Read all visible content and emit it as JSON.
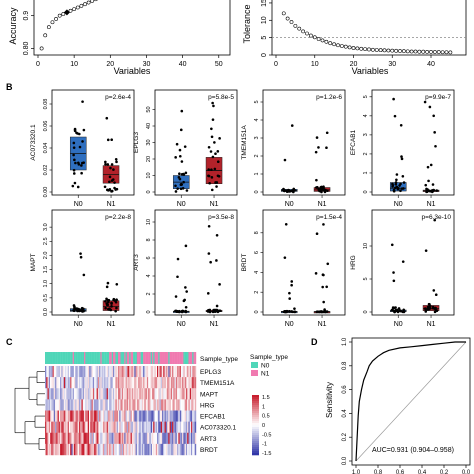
{
  "chart_data": [
    {
      "type": "scatter",
      "panel": "A-left",
      "ylabel": "Accuracy",
      "xlabel": "Variables",
      "x_ticks": [
        "0",
        "10",
        "20",
        "30",
        "40",
        "50"
      ],
      "y_ticks": [
        "0.80",
        "0.9"
      ],
      "xlim": [
        0,
        52
      ],
      "ylim": [
        0.78,
        0.96
      ],
      "points": [
        [
          1,
          0.8
        ],
        [
          2,
          0.84
        ],
        [
          3,
          0.865
        ],
        [
          4,
          0.88
        ],
        [
          5,
          0.89
        ],
        [
          6,
          0.9
        ],
        [
          7,
          0.905
        ],
        [
          8,
          0.91
        ],
        [
          9,
          0.915
        ],
        [
          10,
          0.92
        ],
        [
          11,
          0.925
        ],
        [
          12,
          0.93
        ],
        [
          13,
          0.935
        ],
        [
          14,
          0.94
        ],
        [
          15,
          0.945
        ],
        [
          16,
          0.95
        ]
      ],
      "highlight": [
        8,
        0.91
      ]
    },
    {
      "type": "scatter",
      "panel": "A-right",
      "ylabel": "Tolerance",
      "xlabel": "Variables",
      "x_ticks": [
        "0",
        "10",
        "20",
        "30",
        "40"
      ],
      "y_ticks": [
        "0",
        "5",
        "10",
        "15"
      ],
      "xlim": [
        0,
        48
      ],
      "ylim": [
        0,
        17
      ],
      "hline": 5,
      "points": [
        [
          2,
          12
        ],
        [
          3,
          10.5
        ],
        [
          4,
          9.5
        ],
        [
          5,
          8.4
        ],
        [
          6,
          7.6
        ],
        [
          7,
          6.8
        ],
        [
          8,
          6.2
        ],
        [
          9,
          5.6
        ],
        [
          10,
          5.1
        ],
        [
          11,
          4.6
        ],
        [
          12,
          4.2
        ],
        [
          13,
          3.8
        ],
        [
          14,
          3.4
        ],
        [
          15,
          3.1
        ],
        [
          16,
          2.8
        ],
        [
          17,
          2.6
        ],
        [
          18,
          2.4
        ],
        [
          19,
          2.2
        ],
        [
          20,
          2.0
        ],
        [
          21,
          1.9
        ],
        [
          22,
          1.8
        ],
        [
          23,
          1.7
        ],
        [
          24,
          1.6
        ],
        [
          25,
          1.5
        ],
        [
          26,
          1.45
        ],
        [
          27,
          1.4
        ],
        [
          28,
          1.35
        ],
        [
          29,
          1.3
        ],
        [
          30,
          1.25
        ],
        [
          31,
          1.2
        ],
        [
          32,
          1.15
        ],
        [
          33,
          1.1
        ],
        [
          34,
          1.05
        ],
        [
          35,
          1.0
        ],
        [
          36,
          1.0
        ],
        [
          37,
          0.95
        ],
        [
          38,
          0.95
        ],
        [
          39,
          0.9
        ],
        [
          40,
          0.9
        ],
        [
          41,
          0.85
        ],
        [
          42,
          0.85
        ],
        [
          43,
          0.8
        ],
        [
          44,
          0.8
        ],
        [
          45,
          0.75
        ]
      ]
    },
    {
      "type": "box",
      "panel": "B",
      "groups": [
        "N0",
        "N1"
      ],
      "colors": {
        "N0": "#2f6fbf",
        "N1": "#b2222a"
      },
      "subplots": [
        {
          "gene": "AC073320.1",
          "p": "p=2.6e-4",
          "ylim": [
            0,
            0.09
          ],
          "yticks": [
            "0.00",
            "0.02",
            "0.04",
            "0.06",
            "0.08"
          ],
          "tick_values": [
            0,
            0.02,
            0.04,
            0.06,
            0.08
          ],
          "box": {
            "N0": [
              0.02,
              0.035,
              0.05
            ],
            "N1": [
              0.008,
              0.016,
              0.024
            ]
          }
        },
        {
          "gene": "EPLG3",
          "p": "p=5.8e-5",
          "ylim": [
            0,
            60
          ],
          "yticks": [
            "0",
            "10",
            "20",
            "30",
            "40",
            "50"
          ],
          "tick_values": [
            0,
            10,
            20,
            30,
            40,
            50
          ],
          "box": {
            "N0": [
              2,
              6,
              10
            ],
            "N1": [
              5,
              13,
              21
            ]
          }
        },
        {
          "gene": "TMEM151A",
          "p": "p=1.2e-6",
          "ylim": [
            0,
            5.5
          ],
          "yticks": [
            "0",
            "1",
            "2",
            "3",
            "4",
            "5"
          ],
          "tick_values": [
            0,
            1,
            2,
            3,
            4,
            5
          ],
          "box": {
            "N0": [
              0.03,
              0.08,
              0.15
            ],
            "N1": [
              0.03,
              0.12,
              0.25
            ]
          }
        },
        {
          "gene": "EFCAB1",
          "p": "p=9.9e-7",
          "ylim": [
            0,
            5.2
          ],
          "yticks": [
            "0",
            "1",
            "2",
            "3",
            "4",
            "5"
          ],
          "tick_values": [
            0,
            1,
            2,
            3,
            4,
            5
          ],
          "box": {
            "N0": [
              0.05,
              0.2,
              0.5
            ],
            "N1": [
              0.02,
              0.06,
              0.1
            ]
          }
        },
        {
          "gene": "MAPT",
          "p": "p=2.2e-8",
          "ylim": [
            0,
            3.5
          ],
          "yticks": [
            "0.0",
            "0.5",
            "1.0",
            "1.5",
            "2.0",
            "2.5",
            "3.0"
          ],
          "tick_values": [
            0,
            0.5,
            1,
            1.5,
            2,
            2.5,
            3
          ],
          "box": {
            "N0": [
              0.02,
              0.06,
              0.12
            ],
            "N1": [
              0.05,
              0.2,
              0.4
            ]
          }
        },
        {
          "gene": "ART3",
          "p": "p=3.5e-8",
          "ylim": [
            0,
            11
          ],
          "yticks": [
            "0",
            "2",
            "4",
            "6",
            "8",
            "10"
          ],
          "tick_values": [
            0,
            2,
            4,
            6,
            8,
            10
          ],
          "box": {
            "N0": [
              0.02,
              0.05,
              0.1
            ],
            "N1": [
              0.03,
              0.1,
              0.2
            ]
          }
        },
        {
          "gene": "BRDT",
          "p": "p=1.5e-4",
          "ylim": [
            0,
            10
          ],
          "yticks": [
            "0",
            "2",
            "4",
            "6",
            "8"
          ],
          "tick_values": [
            0,
            2,
            4,
            6,
            8
          ],
          "box": {
            "N0": [
              0.02,
              0.04,
              0.07
            ],
            "N1": [
              0.01,
              0.03,
              0.05
            ]
          }
        },
        {
          "gene": "HRG",
          "p": "p=6.3e-10",
          "ylim": [
            0,
            15
          ],
          "yticks": [
            "0",
            "5",
            "10"
          ],
          "tick_values": [
            0,
            5,
            10
          ],
          "box": {
            "N0": [
              0.05,
              0.15,
              0.3
            ],
            "N1": [
              0.2,
              0.5,
              1.0
            ]
          }
        }
      ]
    },
    {
      "type": "heatmap",
      "panel": "C",
      "rows": [
        "EPLG3",
        "TMEM151A",
        "MAPT",
        "HRG",
        "EFCAB1",
        "AC073320.1",
        "ART3",
        "BRDT"
      ],
      "top_annotation_label": "Sample_type",
      "legend_title": "Sample_type",
      "legend": [
        {
          "name": "N0",
          "color": "#4fd6b8"
        },
        {
          "name": "N1",
          "color": "#f07ab0"
        }
      ],
      "scale_ticks": [
        "1.5",
        "1",
        "0.5",
        "0",
        "-0.5",
        "-1",
        "-1.5"
      ],
      "color_low": "#3136a8",
      "color_mid": "#ffffff",
      "color_high": "#c81e2e"
    },
    {
      "type": "line",
      "panel": "D",
      "ylabel": "Sensitivity",
      "xlabel": "Specificity",
      "y_ticks": [
        "0.0",
        "0.2",
        "0.4",
        "0.6",
        "0.8",
        "1.0"
      ],
      "x_ticks": [
        "1.0",
        "0.8",
        "0.6",
        "0.4",
        "0.2",
        "0.0"
      ],
      "xlim": [
        1.0,
        0.0
      ],
      "ylim": [
        0,
        1.0
      ],
      "auc_text": "AUC=0.931 (0.904–0.958)",
      "roc": [
        [
          1.0,
          0.0
        ],
        [
          0.98,
          0.38
        ],
        [
          0.97,
          0.5
        ],
        [
          0.95,
          0.6
        ],
        [
          0.93,
          0.68
        ],
        [
          0.9,
          0.75
        ],
        [
          0.88,
          0.8
        ],
        [
          0.85,
          0.84
        ],
        [
          0.8,
          0.88
        ],
        [
          0.75,
          0.91
        ],
        [
          0.7,
          0.93
        ],
        [
          0.6,
          0.95
        ],
        [
          0.5,
          0.96
        ],
        [
          0.4,
          0.97
        ],
        [
          0.3,
          0.98
        ],
        [
          0.2,
          0.99
        ],
        [
          0.1,
          1.0
        ],
        [
          0.0,
          1.0
        ]
      ]
    }
  ],
  "panel_labels": {
    "B": "B",
    "C": "C",
    "D": "D"
  }
}
